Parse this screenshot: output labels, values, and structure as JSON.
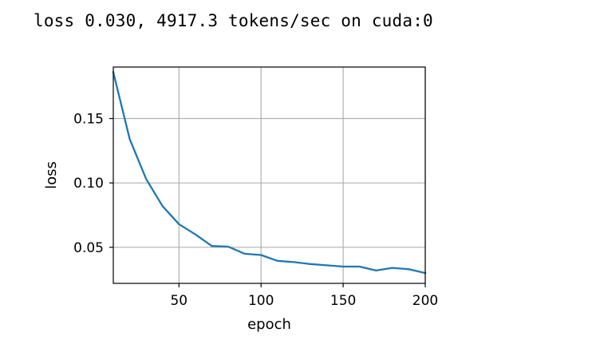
{
  "output_text": "loss 0.030, 4917.3 tokens/sec on cuda:0",
  "chart_data": {
    "type": "line",
    "xlabel": "epoch",
    "ylabel": "loss",
    "xlim": [
      10,
      200
    ],
    "ylim": [
      0.022,
      0.19
    ],
    "grid": true,
    "xticks": [
      50,
      100,
      150,
      200
    ],
    "xtick_labels": [
      "50",
      "100",
      "150",
      "200"
    ],
    "yticks": [
      0.05,
      0.1,
      0.15
    ],
    "ytick_labels": [
      "0.05",
      "0.10",
      "0.15"
    ],
    "series": [
      {
        "color": "#1f77b4",
        "x": [
          10,
          20,
          30,
          40,
          50,
          60,
          70,
          80,
          90,
          100,
          110,
          120,
          130,
          140,
          150,
          160,
          170,
          180,
          190,
          200
        ],
        "y": [
          0.186,
          0.134,
          0.103,
          0.082,
          0.068,
          0.06,
          0.051,
          0.0505,
          0.045,
          0.044,
          0.0395,
          0.0385,
          0.037,
          0.036,
          0.035,
          0.035,
          0.032,
          0.034,
          0.033,
          0.03
        ]
      }
    ]
  }
}
